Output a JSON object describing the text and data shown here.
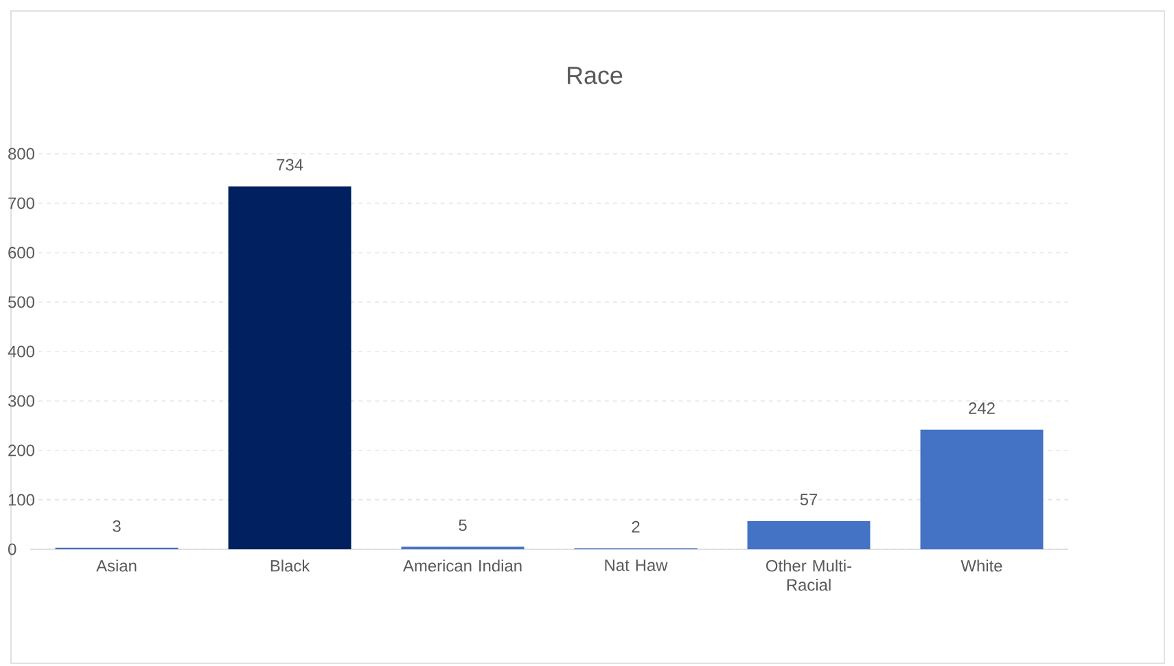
{
  "chart_data": {
    "type": "bar",
    "title": "Race",
    "categories": [
      "Asian",
      "Black",
      "American Indian",
      "Nat Haw",
      "Other Multi-Racial",
      "White"
    ],
    "values": [
      3,
      734,
      5,
      2,
      57,
      242
    ],
    "colors": [
      "#4472c4",
      "#002060",
      "#4472c4",
      "#4472c4",
      "#4472c4",
      "#4472c4"
    ],
    "ylim": [
      0,
      800
    ],
    "yticks": [
      0,
      100,
      200,
      300,
      400,
      500,
      600,
      700,
      800
    ],
    "grid": "y",
    "data_labels": true
  }
}
